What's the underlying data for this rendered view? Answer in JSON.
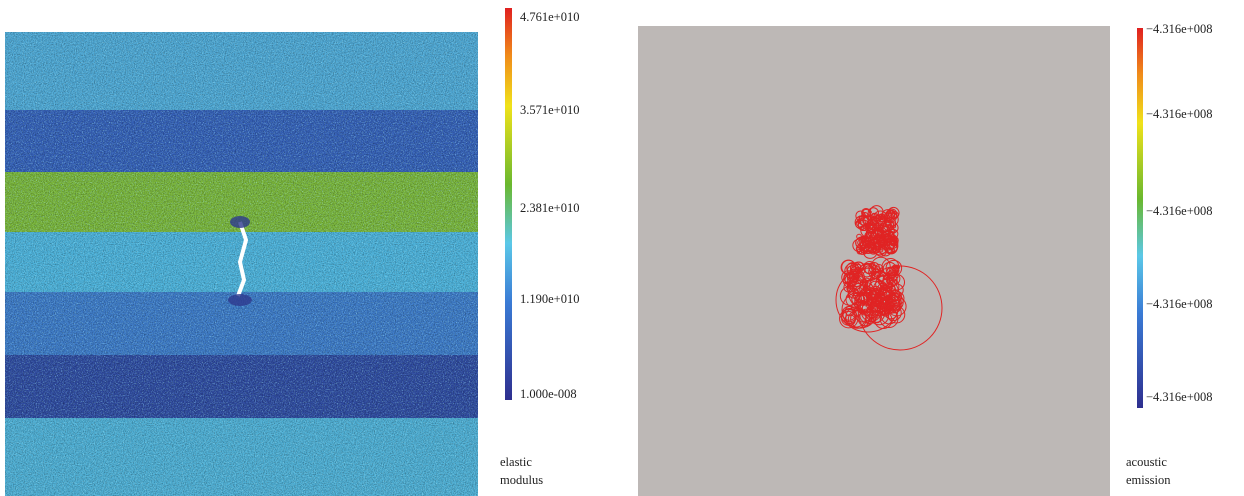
{
  "panels": [
    {
      "colorbar": {
        "labels": [
          "4.761e+010",
          "3.571e+010",
          "2.381e+010",
          "1.190e+010",
          "1.000e-008"
        ]
      },
      "caption": [
        "elastic",
        "modulus"
      ]
    },
    {
      "colorbar": {
        "labels": [
          "−4.316e+008",
          "−4.316e+008",
          "−4.316e+008",
          "−4.316e+008",
          "−4.316e+008"
        ]
      },
      "caption": [
        "acoustic",
        "emission"
      ]
    }
  ]
}
